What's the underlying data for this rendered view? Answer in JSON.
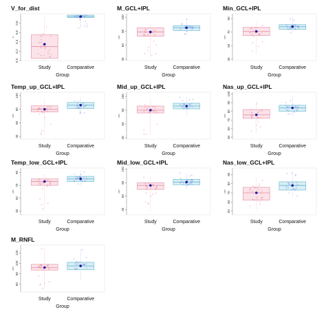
{
  "colors": {
    "study_box": "#e8a2b4",
    "study_fill": "#fbe3e9",
    "study_points": "#e05a78",
    "comparative_box": "#7ec3d8",
    "comparative_fill": "#d9eff6",
    "comparative_points": "#5d6fd6",
    "mean_dot": "#1a1aa0",
    "axis": "#555555"
  },
  "chart_data": [
    {
      "type": "box",
      "title": "V_for_dist",
      "xlabel": "Group",
      "ylabel": "a",
      "categories": [
        "Study",
        "Comparative"
      ],
      "ylim": [
        0,
        1.0
      ],
      "yticks": [
        "0.0",
        "0.2",
        "0.4",
        "0.6",
        "0.8"
      ],
      "series": [
        {
          "q1": 0.05,
          "median": 0.3,
          "q3": 0.55,
          "mean": 0.35,
          "ymin": 0.0,
          "ymax": 0.95
        },
        {
          "q1": 0.92,
          "median": 0.94,
          "q3": 0.97,
          "mean": 0.94,
          "ymin": 0.7,
          "ymax": 1.0
        }
      ]
    },
    {
      "type": "box",
      "title": "M_GCL+IPL",
      "xlabel": "Group",
      "ylabel": "um",
      "categories": [
        "Study",
        "Comparative"
      ],
      "ylim": [
        38,
        105
      ],
      "yticks": [
        "40",
        "60",
        "80",
        "100"
      ],
      "series": [
        {
          "q1": 73,
          "median": 79,
          "q3": 85,
          "mean": 79,
          "ymin": 44,
          "ymax": 92
        },
        {
          "q1": 81,
          "median": 85,
          "q3": 88,
          "mean": 85,
          "ymin": 75,
          "ymax": 98
        }
      ]
    },
    {
      "type": "box",
      "title": "Min_GCL+IPL",
      "xlabel": "Group",
      "ylabel": "um",
      "categories": [
        "Study",
        "Comparative"
      ],
      "ylim": [
        28,
        97
      ],
      "yticks": [
        "30",
        "50",
        "70",
        "90"
      ],
      "series": [
        {
          "q1": 65,
          "median": 71,
          "q3": 77,
          "mean": 71,
          "ymin": 38,
          "ymax": 85
        },
        {
          "q1": 74,
          "median": 78,
          "q3": 81,
          "mean": 78,
          "ymin": 68,
          "ymax": 92
        }
      ]
    },
    {
      "type": "box",
      "title": "Temp_up_GCL+IPL",
      "xlabel": "Group",
      "ylabel": "um",
      "categories": [
        "Study",
        "Comparative"
      ],
      "ylim": [
        36,
        105
      ],
      "yticks": [
        "40",
        "60",
        "80",
        "100"
      ],
      "series": [
        {
          "q1": 76,
          "median": 80,
          "q3": 85,
          "mean": 80,
          "ymin": 42,
          "ymax": 94
        },
        {
          "q1": 81,
          "median": 86,
          "q3": 90,
          "mean": 86,
          "ymin": 74,
          "ymax": 98
        }
      ]
    },
    {
      "type": "box",
      "title": "Mid_up_GCL+IPL",
      "xlabel": "Group",
      "ylabel": "um",
      "categories": [
        "Study",
        "Comparative"
      ],
      "ylim": [
        38,
        106
      ],
      "yticks": [
        "40",
        "60",
        "80",
        "100"
      ],
      "series": [
        {
          "q1": 76,
          "median": 80,
          "q3": 86,
          "mean": 80,
          "ymin": 44,
          "ymax": 96
        },
        {
          "q1": 82,
          "median": 86,
          "q3": 90,
          "mean": 86,
          "ymin": 74,
          "ymax": 100
        }
      ]
    },
    {
      "type": "box",
      "title": "Nas_up_GCL+IPL",
      "xlabel": "Group",
      "ylabel": "um",
      "categories": [
        "Study",
        "Comparative"
      ],
      "ylim": [
        48,
        102
      ],
      "yticks": [
        "50",
        "60",
        "70",
        "80",
        "90",
        "100"
      ],
      "series": [
        {
          "q1": 72,
          "median": 76,
          "q3": 82,
          "mean": 76,
          "ymin": 55,
          "ymax": 92
        },
        {
          "q1": 80,
          "median": 84,
          "q3": 87,
          "mean": 84,
          "ymin": 74,
          "ymax": 98
        }
      ]
    },
    {
      "type": "box",
      "title": "Temp_low_GCL+IPL",
      "xlabel": "Group",
      "ylabel": "um",
      "categories": [
        "Study",
        "Comparative"
      ],
      "ylim": [
        24,
        97
      ],
      "yticks": [
        "30",
        "50",
        "70",
        "90"
      ],
      "series": [
        {
          "q1": 70,
          "median": 76,
          "q3": 80,
          "mean": 76,
          "ymin": 32,
          "ymax": 88
        },
        {
          "q1": 76,
          "median": 80,
          "q3": 84,
          "mean": 80,
          "ymin": 70,
          "ymax": 92
        }
      ]
    },
    {
      "type": "box",
      "title": "Mid_low_GCL+IPL",
      "xlabel": "Group",
      "ylabel": "um",
      "categories": [
        "Study",
        "Comparative"
      ],
      "ylim": [
        32,
        102
      ],
      "yticks": [
        "40",
        "60",
        "80",
        "100"
      ],
      "series": [
        {
          "q1": 70,
          "median": 76,
          "q3": 80,
          "mean": 76,
          "ymin": 38,
          "ymax": 90
        },
        {
          "q1": 77,
          "median": 81,
          "q3": 85,
          "mean": 81,
          "ymin": 70,
          "ymax": 95
        }
      ]
    },
    {
      "type": "box",
      "title": "Nas_low_GCL+IPL",
      "xlabel": "Group",
      "ylabel": "um",
      "categories": [
        "Study",
        "Comparative"
      ],
      "ylim": [
        46,
        97
      ],
      "yticks": [
        "50",
        "60",
        "70",
        "80",
        "90"
      ],
      "series": [
        {
          "q1": 62,
          "median": 70,
          "q3": 76,
          "mean": 70,
          "ymin": 52,
          "ymax": 86
        },
        {
          "q1": 73,
          "median": 78,
          "q3": 82,
          "mean": 78,
          "ymin": 66,
          "ymax": 92
        }
      ]
    },
    {
      "type": "box",
      "title": "M_RNFL",
      "xlabel": "Group",
      "ylabel": "um",
      "categories": [
        "Study",
        "Comparative"
      ],
      "ylim": [
        45,
        135
      ],
      "yticks": [
        "60",
        "80",
        "100",
        "120"
      ],
      "series": [
        {
          "q1": 87,
          "median": 92,
          "q3": 98,
          "mean": 92,
          "ymin": 50,
          "ymax": 130
        },
        {
          "q1": 88,
          "median": 95,
          "q3": 102,
          "mean": 95,
          "ymin": 70,
          "ymax": 128
        }
      ]
    }
  ]
}
